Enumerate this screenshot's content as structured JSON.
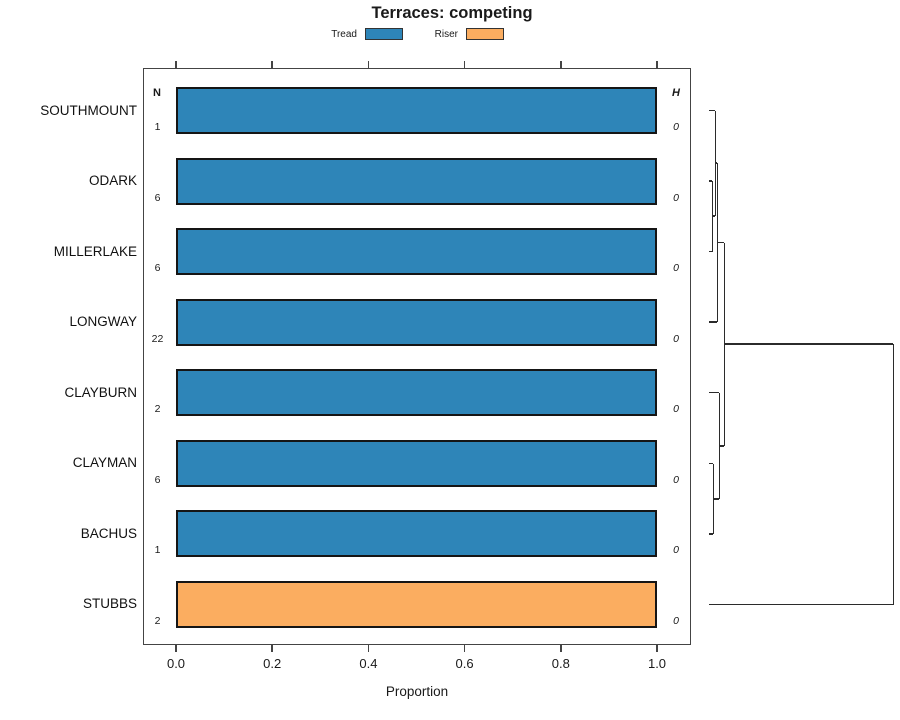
{
  "headers": {
    "n": "N",
    "h": "H"
  },
  "chart_data": {
    "type": "bar",
    "orientation": "horizontal",
    "title": "Terraces: competing",
    "xlabel": "Proportion",
    "xlim": [
      0,
      1
    ],
    "x_ticks": [
      "0.0",
      "0.2",
      "0.4",
      "0.6",
      "0.8",
      "1.0"
    ],
    "grid": false,
    "legend_position": "top",
    "legend": [
      {
        "label": "Tread",
        "color": "#2E85B8"
      },
      {
        "label": "Riser",
        "color": "#FBAD60"
      }
    ],
    "categories": [
      "SOUTHMOUNT",
      "ODARK",
      "MILLERLAKE",
      "LONGWAY",
      "CLAYBURN",
      "CLAYMAN",
      "BACHUS",
      "STUBBS"
    ],
    "rows": [
      {
        "label": "SOUTHMOUNT",
        "n": "1",
        "h": "0",
        "series": "Tread",
        "proportion": 1.0
      },
      {
        "label": "ODARK",
        "n": "6",
        "h": "0",
        "series": "Tread",
        "proportion": 1.0
      },
      {
        "label": "MILLERLAKE",
        "n": "6",
        "h": "0",
        "series": "Tread",
        "proportion": 1.0
      },
      {
        "label": "LONGWAY",
        "n": "22",
        "h": "0",
        "series": "Tread",
        "proportion": 1.0
      },
      {
        "label": "CLAYBURN",
        "n": "2",
        "h": "0",
        "series": "Tread",
        "proportion": 1.0
      },
      {
        "label": "CLAYMAN",
        "n": "6",
        "h": "0",
        "series": "Tread",
        "proportion": 1.0
      },
      {
        "label": "BACHUS",
        "n": "1",
        "h": "0",
        "series": "Tread",
        "proportion": 1.0
      },
      {
        "label": "STUBBS",
        "n": "2",
        "h": "0",
        "series": "Riser",
        "proportion": 1.0
      }
    ],
    "dendrogram": {
      "leaf_order": [
        "SOUTHMOUNT",
        "ODARK",
        "MILLERLAKE",
        "LONGWAY",
        "CLAYBURN",
        "CLAYMAN",
        "BACHUS",
        "STUBBS"
      ],
      "segments": [
        [
          709,
          110.5,
          714.5,
          110.5
        ],
        [
          709,
          181,
          712,
          181
        ],
        [
          709,
          251.5,
          712,
          251.5
        ],
        [
          712,
          181,
          712,
          251.5
        ],
        [
          712,
          216,
          714.5,
          216
        ],
        [
          714.5,
          110.5,
          714.5,
          216
        ],
        [
          714.5,
          163,
          716.5,
          163
        ],
        [
          709,
          322,
          716.5,
          322
        ],
        [
          716.5,
          163,
          716.5,
          322
        ],
        [
          716.5,
          242.5,
          723.5,
          242.5
        ],
        [
          709,
          392.5,
          718.5,
          392.5
        ],
        [
          709,
          463.5,
          713,
          463.5
        ],
        [
          709,
          534,
          713,
          534
        ],
        [
          713,
          463.5,
          713,
          534
        ],
        [
          713,
          499,
          718.5,
          499
        ],
        [
          718.5,
          392.5,
          718.5,
          499
        ],
        [
          718.5,
          446,
          723.5,
          446
        ],
        [
          723.5,
          242.5,
          723.5,
          446
        ],
        [
          723.5,
          344,
          893,
          344
        ],
        [
          709,
          604.5,
          893,
          604.5
        ],
        [
          893,
          344,
          893,
          604.5
        ]
      ]
    }
  }
}
